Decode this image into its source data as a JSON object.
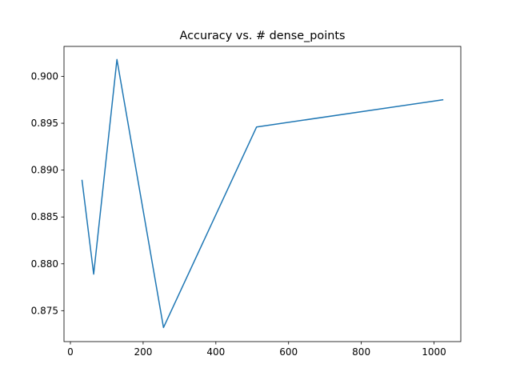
{
  "chart_data": {
    "type": "line",
    "title": "Accuracy vs. # dense_points",
    "xlabel": "",
    "ylabel": "",
    "xlim": [
      -17.6,
      1073.6
    ],
    "ylim": [
      0.8717,
      0.9032
    ],
    "xticks": [
      0,
      200,
      400,
      600,
      800,
      1000
    ],
    "yticks": [
      0.875,
      0.88,
      0.885,
      0.89,
      0.895,
      0.9
    ],
    "ytick_labels": [
      "0.875",
      "0.880",
      "0.885",
      "0.890",
      "0.895",
      "0.900"
    ],
    "grid": false,
    "series": [
      {
        "color": "#1f77b4",
        "x": [
          32,
          64,
          128,
          256,
          512,
          1024
        ],
        "y": [
          0.8889,
          0.8789,
          0.9018,
          0.8732,
          0.8946,
          0.8975
        ]
      }
    ]
  }
}
